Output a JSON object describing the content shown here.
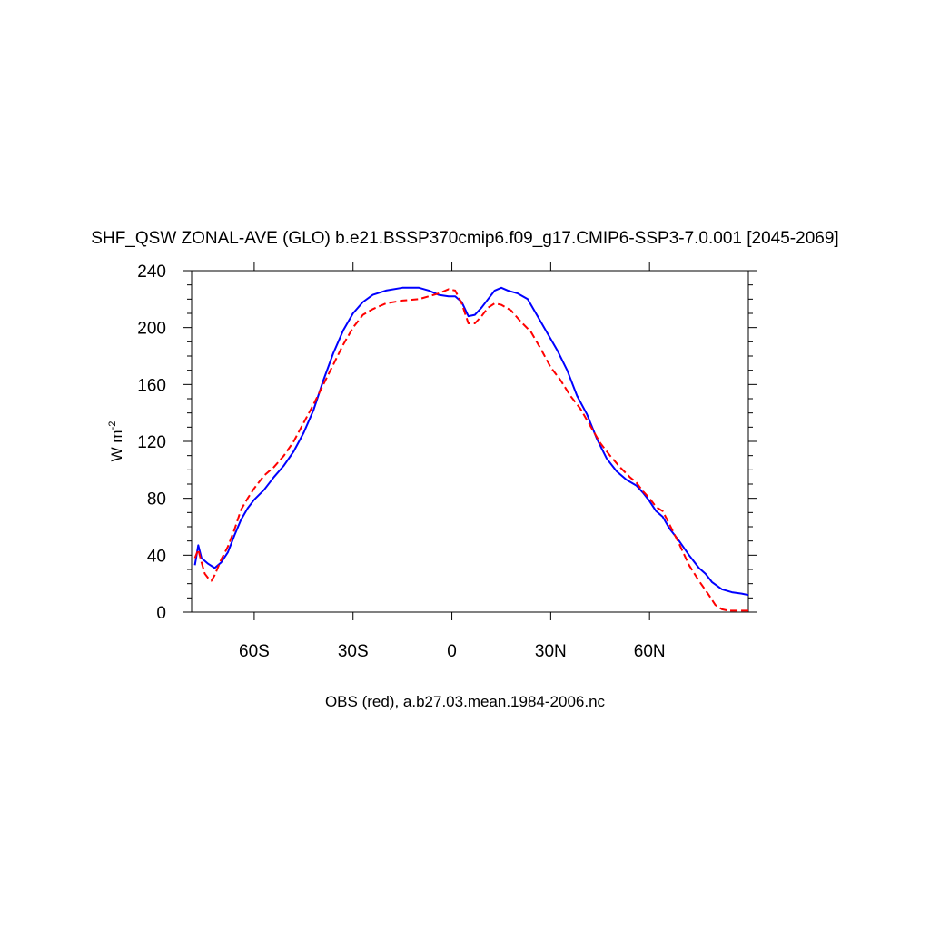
{
  "chart_data": {
    "type": "line",
    "title": "SHF_QSW ZONAL-AVE (GLO) b.e21.BSSP370cmip6.f09_g17.CMIP6-SSP3-7.0.001 [2045-2069]",
    "xlabel": "OBS (red), a.b27.03.mean.1984-2006.nc",
    "ylabel": "W m",
    "ylabel_sup": "-2",
    "xlim": [
      -79,
      90
    ],
    "ylim": [
      0,
      240
    ],
    "x_ticks": [
      {
        "value": -60,
        "label": "60S"
      },
      {
        "value": -30,
        "label": "30S"
      },
      {
        "value": 0,
        "label": "0"
      },
      {
        "value": 30,
        "label": "30N"
      },
      {
        "value": 60,
        "label": "60N"
      }
    ],
    "y_ticks": [
      0,
      40,
      80,
      120,
      160,
      200,
      240
    ],
    "grid": false,
    "series": [
      {
        "color": "#0000ff",
        "dash": "solid",
        "points": [
          [
            -78,
            33
          ],
          [
            -77,
            47
          ],
          [
            -76,
            38
          ],
          [
            -74,
            34
          ],
          [
            -72,
            31
          ],
          [
            -70,
            35
          ],
          [
            -68,
            42
          ],
          [
            -66,
            54
          ],
          [
            -64,
            65
          ],
          [
            -62,
            73
          ],
          [
            -60,
            79
          ],
          [
            -57,
            86
          ],
          [
            -54,
            95
          ],
          [
            -51,
            103
          ],
          [
            -48,
            113
          ],
          [
            -45,
            126
          ],
          [
            -42,
            142
          ],
          [
            -39,
            163
          ],
          [
            -36,
            182
          ],
          [
            -33,
            198
          ],
          [
            -30,
            210
          ],
          [
            -27,
            218
          ],
          [
            -24,
            223
          ],
          [
            -20,
            226
          ],
          [
            -15,
            228
          ],
          [
            -10,
            228
          ],
          [
            -7,
            226
          ],
          [
            -4,
            223
          ],
          [
            -1,
            222
          ],
          [
            1,
            222
          ],
          [
            3,
            218
          ],
          [
            5,
            208
          ],
          [
            7,
            209
          ],
          [
            9,
            214
          ],
          [
            11,
            220
          ],
          [
            13,
            226
          ],
          [
            15,
            228
          ],
          [
            17,
            226
          ],
          [
            20,
            224
          ],
          [
            23,
            220
          ],
          [
            26,
            208
          ],
          [
            29,
            196
          ],
          [
            32,
            184
          ],
          [
            35,
            170
          ],
          [
            38,
            152
          ],
          [
            41,
            139
          ],
          [
            44,
            122
          ],
          [
            47,
            108
          ],
          [
            50,
            99
          ],
          [
            53,
            93
          ],
          [
            56,
            89
          ],
          [
            58,
            84
          ],
          [
            60,
            78
          ],
          [
            62,
            71
          ],
          [
            64,
            67
          ],
          [
            66,
            59
          ],
          [
            69,
            50
          ],
          [
            72,
            40
          ],
          [
            75,
            31
          ],
          [
            77,
            27
          ],
          [
            79,
            21
          ],
          [
            82,
            16
          ],
          [
            85,
            14
          ],
          [
            88,
            13
          ],
          [
            90,
            12
          ]
        ]
      },
      {
        "color": "#ff0000",
        "dash": "dashed",
        "points": [
          [
            -78,
            38
          ],
          [
            -77,
            44
          ],
          [
            -76,
            35
          ],
          [
            -75,
            27
          ],
          [
            -74,
            24
          ],
          [
            -73,
            22
          ],
          [
            -72,
            26
          ],
          [
            -70,
            37
          ],
          [
            -68,
            46
          ],
          [
            -66,
            58
          ],
          [
            -64,
            72
          ],
          [
            -62,
            80
          ],
          [
            -60,
            87
          ],
          [
            -57,
            96
          ],
          [
            -54,
            102
          ],
          [
            -51,
            110
          ],
          [
            -48,
            120
          ],
          [
            -45,
            133
          ],
          [
            -42,
            146
          ],
          [
            -39,
            160
          ],
          [
            -36,
            174
          ],
          [
            -33,
            188
          ],
          [
            -30,
            200
          ],
          [
            -27,
            209
          ],
          [
            -24,
            213
          ],
          [
            -20,
            217
          ],
          [
            -15,
            219
          ],
          [
            -10,
            220
          ],
          [
            -7,
            222
          ],
          [
            -4,
            224
          ],
          [
            -1,
            227
          ],
          [
            1,
            226
          ],
          [
            3,
            217
          ],
          [
            5,
            203
          ],
          [
            7,
            203
          ],
          [
            9,
            208
          ],
          [
            11,
            214
          ],
          [
            13,
            217
          ],
          [
            15,
            216
          ],
          [
            18,
            212
          ],
          [
            21,
            204
          ],
          [
            24,
            197
          ],
          [
            27,
            185
          ],
          [
            30,
            172
          ],
          [
            33,
            163
          ],
          [
            36,
            152
          ],
          [
            39,
            143
          ],
          [
            42,
            131
          ],
          [
            45,
            119
          ],
          [
            48,
            110
          ],
          [
            51,
            102
          ],
          [
            54,
            95
          ],
          [
            56,
            91
          ],
          [
            58,
            85
          ],
          [
            60,
            80
          ],
          [
            62,
            74
          ],
          [
            64,
            71
          ],
          [
            66,
            62
          ],
          [
            69,
            48
          ],
          [
            72,
            33
          ],
          [
            75,
            22
          ],
          [
            78,
            12
          ],
          [
            80,
            5
          ],
          [
            82,
            2
          ],
          [
            84,
            1
          ],
          [
            86,
            1
          ],
          [
            88,
            1
          ],
          [
            90,
            1
          ]
        ]
      }
    ]
  }
}
